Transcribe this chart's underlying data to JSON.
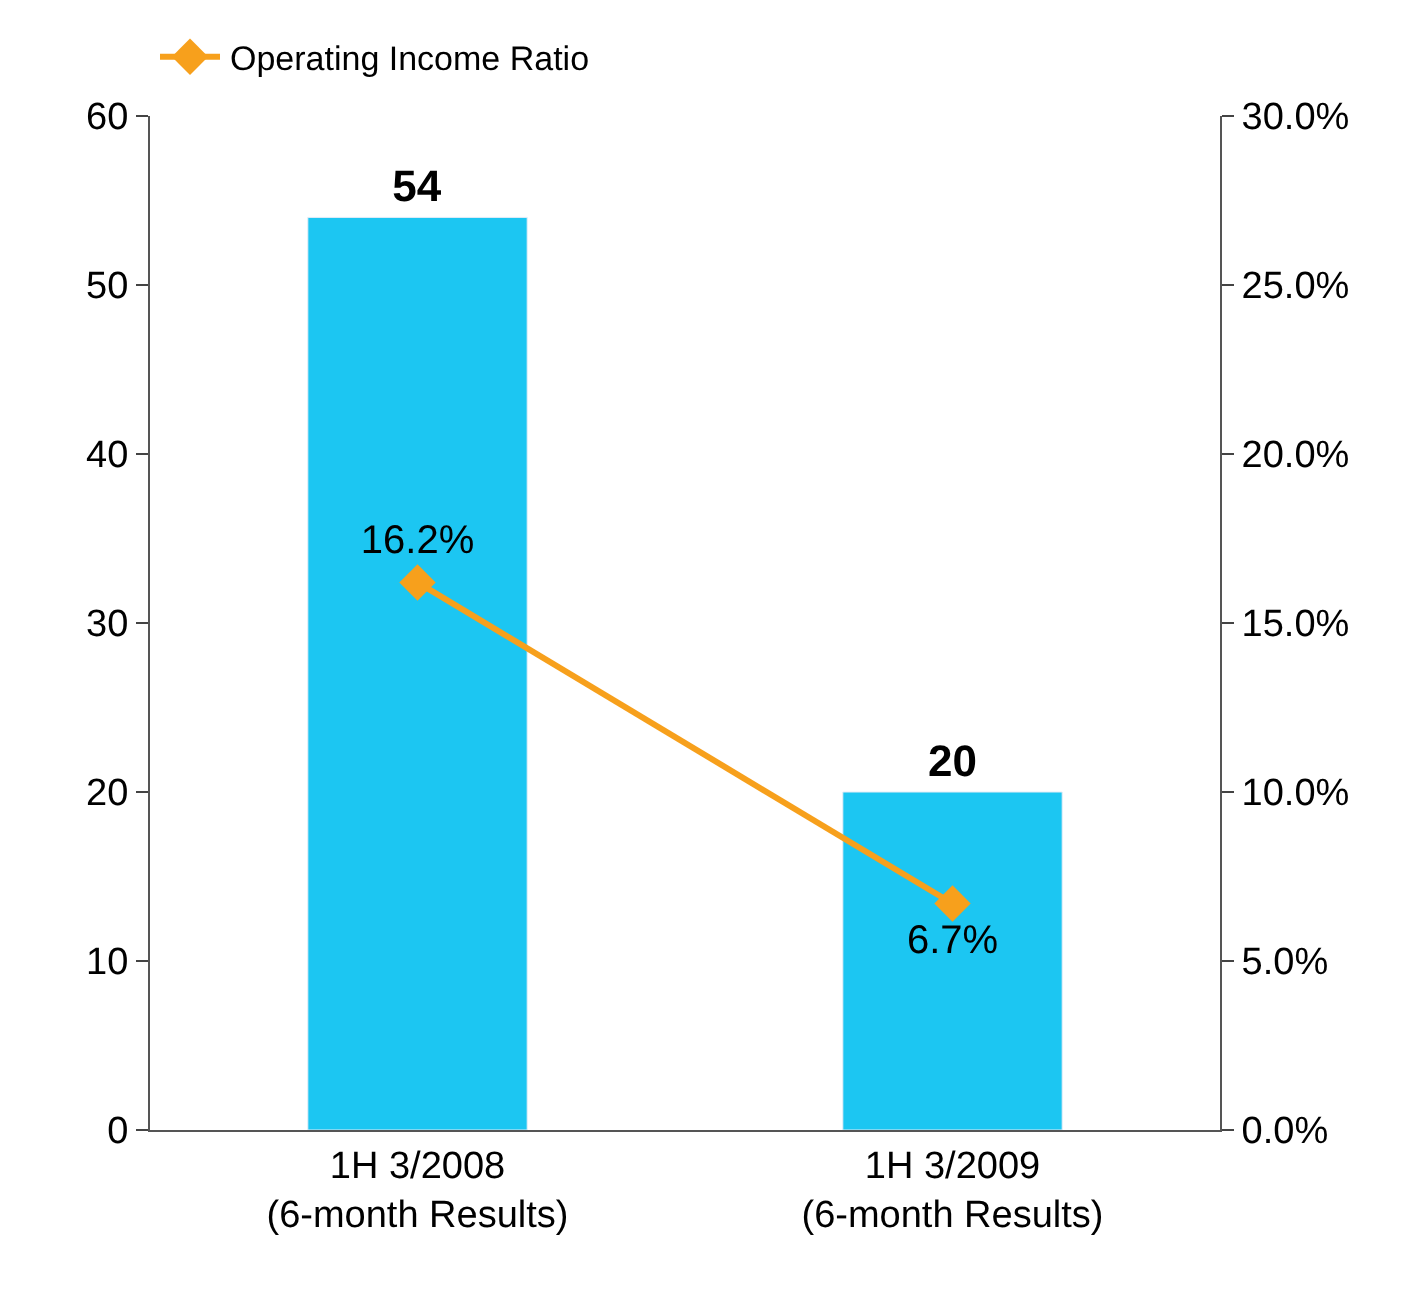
{
  "chart_data": {
    "type": "bar",
    "categories": [
      "1H 3/2008\n(6-month Results)",
      "1H 3/2009\n(6-month Results)"
    ],
    "series": [
      {
        "color": "#1cc6f2",
        "values": [
          54,
          20
        ],
        "value_labels": [
          "54",
          "20"
        ]
      },
      {
        "type": "line",
        "name": "Operating Income Ratio",
        "color": "#f7a01c",
        "axis": "y2",
        "values": [
          16.2,
          6.7
        ],
        "value_labels": [
          "16.2%",
          "6.7%"
        ]
      }
    ],
    "ylim": [
      0,
      60
    ],
    "yticks": [
      0,
      10,
      20,
      30,
      40,
      50,
      60
    ],
    "y2lim": [
      0,
      30
    ],
    "y2ticks": [
      {
        "value": 0,
        "label": "0.0%"
      },
      {
        "value": 5,
        "label": "5.0%"
      },
      {
        "value": 10,
        "label": "10.0%"
      },
      {
        "value": 15,
        "label": "15.0%"
      },
      {
        "value": 20,
        "label": "20.0%"
      },
      {
        "value": 25,
        "label": "25.0%"
      },
      {
        "value": 30,
        "label": "30.0%"
      }
    ],
    "legend": "top left",
    "marker": "diamond",
    "line_style": "solid"
  }
}
